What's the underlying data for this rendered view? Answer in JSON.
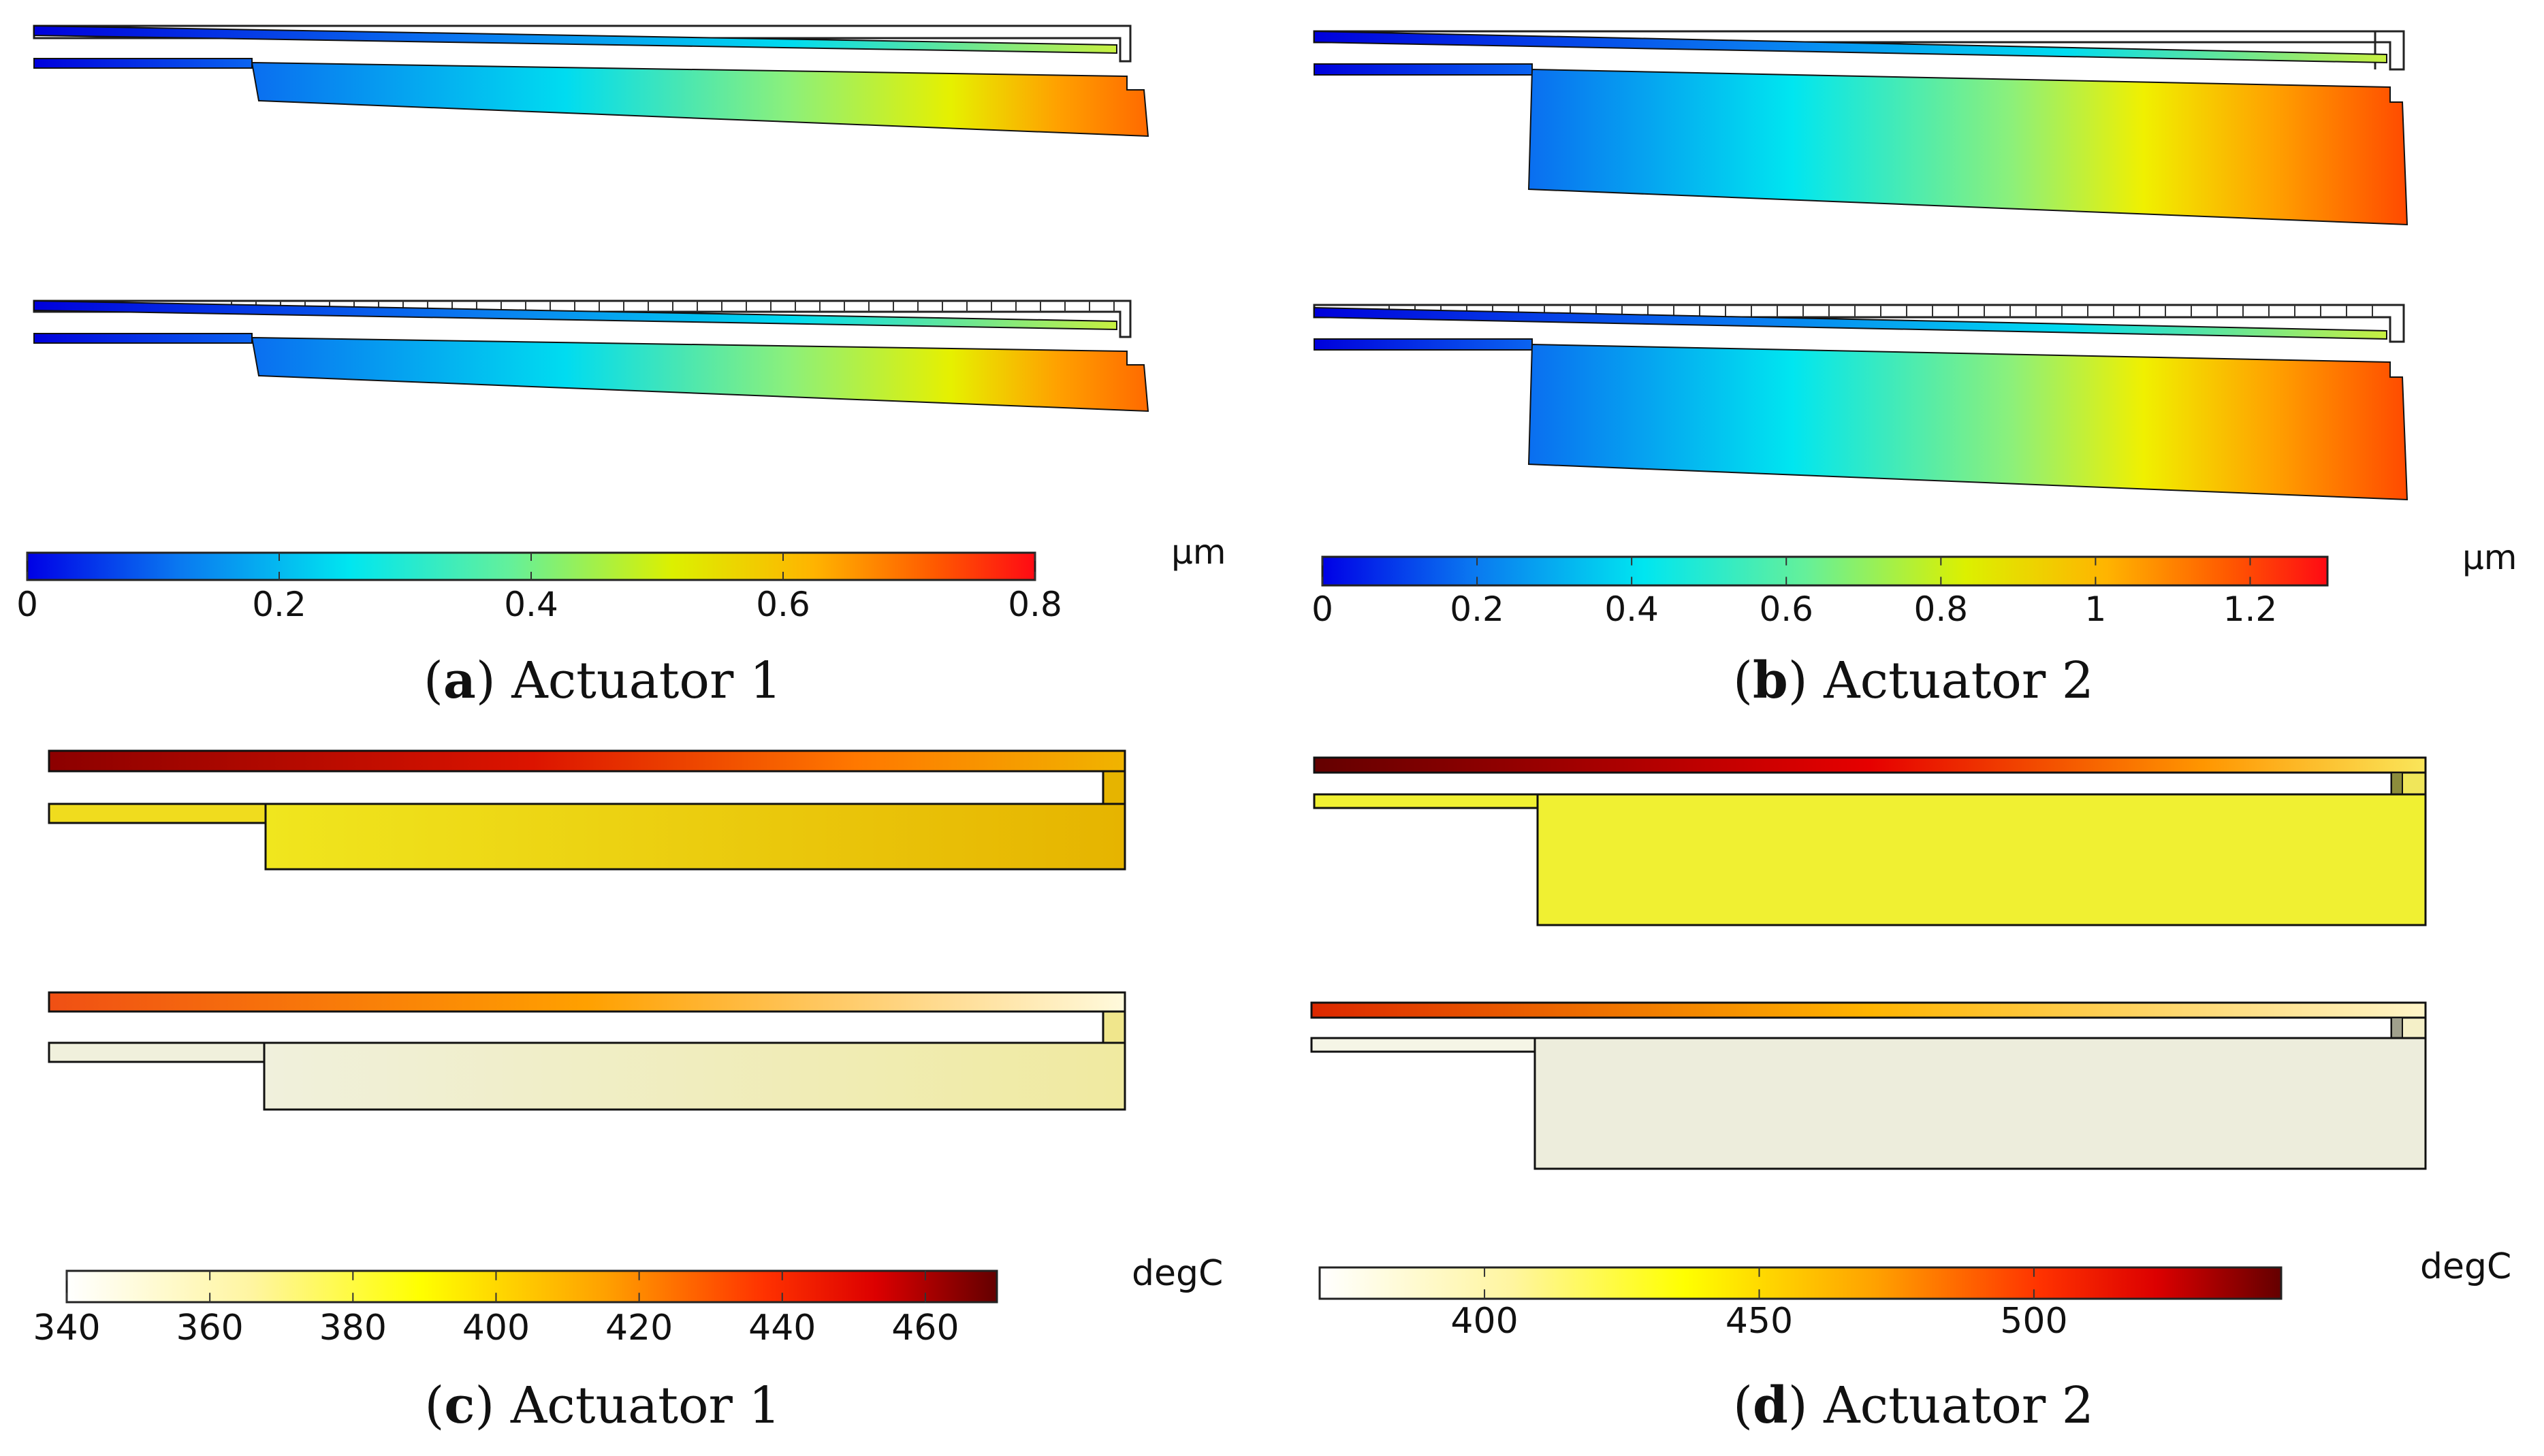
{
  "figure": {
    "panels": [
      {
        "label": "a",
        "title": "Actuator 1",
        "quantity": "displacement",
        "unit": "μm",
        "colormap": "rainbow",
        "colors": [
          "#0000e6",
          "#0a78f0",
          "#00e6f0",
          "#64f09a",
          "#dcf000",
          "#ffb400",
          "#ff5a00",
          "#ff0a14"
        ],
        "ticks": [
          "0",
          "0.2",
          "0.4",
          "0.6",
          "0.8"
        ],
        "range": [
          0,
          0.8
        ]
      },
      {
        "label": "b",
        "title": "Actuator 2",
        "quantity": "displacement",
        "unit": "μm",
        "colormap": "rainbow",
        "colors": [
          "#0000e6",
          "#0a78f0",
          "#00e6f0",
          "#64f09a",
          "#dcf000",
          "#ffb400",
          "#ff5a00",
          "#ff0a14"
        ],
        "ticks": [
          "0",
          "0.2",
          "0.4",
          "0.6",
          "0.8",
          "1",
          "1.2"
        ],
        "range": [
          0,
          1.3
        ]
      },
      {
        "label": "c",
        "title": "Actuator 1",
        "quantity": "temperature",
        "unit": "degC",
        "colormap": "thermal",
        "colors": [
          "#ffffff",
          "#fff5a0",
          "#ffff00",
          "#ffa000",
          "#ff3200",
          "#dc0000",
          "#640000"
        ],
        "ticks": [
          "340",
          "360",
          "380",
          "400",
          "420",
          "440",
          "460"
        ],
        "range": [
          340,
          470
        ]
      },
      {
        "label": "d",
        "title": "Actuator 2",
        "quantity": "temperature",
        "unit": "degC",
        "colormap": "thermal",
        "colors": [
          "#ffffff",
          "#fff5a0",
          "#ffff00",
          "#ffa000",
          "#ff3200",
          "#dc0000",
          "#640000"
        ],
        "ticks": [
          "400",
          "450",
          "500"
        ],
        "range": [
          370,
          545
        ]
      }
    ]
  }
}
